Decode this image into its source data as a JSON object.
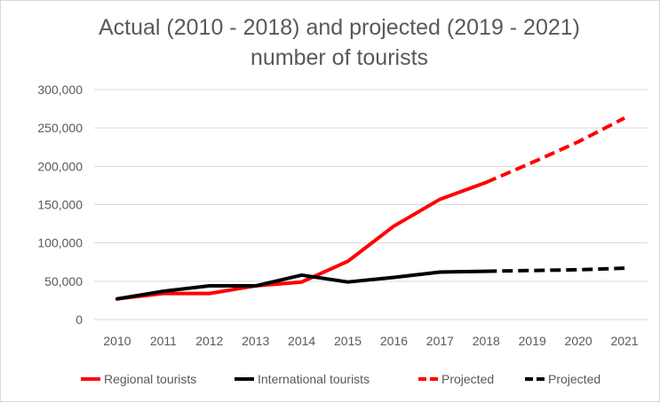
{
  "chart_data": {
    "type": "line",
    "title": [
      "Actual (2010 - 2018) and projected (2019 - 2021)",
      "number of tourists"
    ],
    "xlabel": "",
    "ylabel": "",
    "categories": [
      "2010",
      "2011",
      "2012",
      "2013",
      "2014",
      "2015",
      "2016",
      "2017",
      "2018",
      "2019",
      "2020",
      "2021"
    ],
    "y_ticks": [
      "0",
      "50,000",
      "100,000",
      "150,000",
      "200,000",
      "250,000",
      "300,000"
    ],
    "ylim": [
      0,
      300000
    ],
    "grid": true,
    "legend_position": "bottom",
    "series": [
      {
        "name": "Regional tourists",
        "color": "#ff0000",
        "dashed": false,
        "values": [
          27000,
          34000,
          34000,
          44000,
          49000,
          76000,
          122000,
          157000,
          179000,
          null,
          null,
          null
        ]
      },
      {
        "name": "International tourists",
        "color": "#000000",
        "dashed": false,
        "values": [
          27000,
          37000,
          44000,
          44000,
          58000,
          49000,
          55000,
          62000,
          63000,
          null,
          null,
          null
        ]
      },
      {
        "name": "Projected",
        "color": "#ff0000",
        "dashed": true,
        "values": [
          null,
          null,
          null,
          null,
          null,
          null,
          null,
          null,
          179000,
          205000,
          232000,
          263000
        ]
      },
      {
        "name": "Projected",
        "color": "#000000",
        "dashed": true,
        "values": [
          null,
          null,
          null,
          null,
          null,
          null,
          null,
          null,
          63000,
          64000,
          65000,
          67000
        ]
      }
    ]
  }
}
